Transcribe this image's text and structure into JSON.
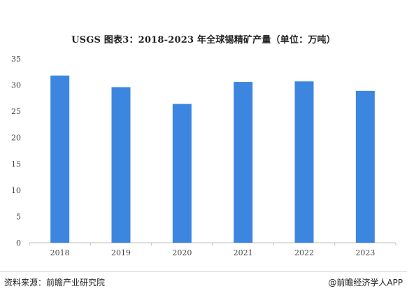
{
  "chart_data": {
    "type": "bar",
    "title": "USGS  图表3：2018-2023 年全球锡精矿产量（单位：万吨）",
    "xlabel": "",
    "ylabel": "",
    "categories": [
      "2018",
      "2019",
      "2020",
      "2021",
      "2022",
      "2023"
    ],
    "values": [
      31.8,
      29.6,
      26.4,
      30.6,
      30.7,
      28.9
    ],
    "ylim": [
      0,
      35
    ],
    "yticks": [
      0,
      5,
      10,
      15,
      20,
      25,
      30,
      35
    ],
    "grid": false,
    "legend": "none",
    "bar_color": "#3d86e0"
  },
  "footer": {
    "source": "资料来源：前瞻产业研究院",
    "credit": "@前瞻经济学人APP"
  }
}
